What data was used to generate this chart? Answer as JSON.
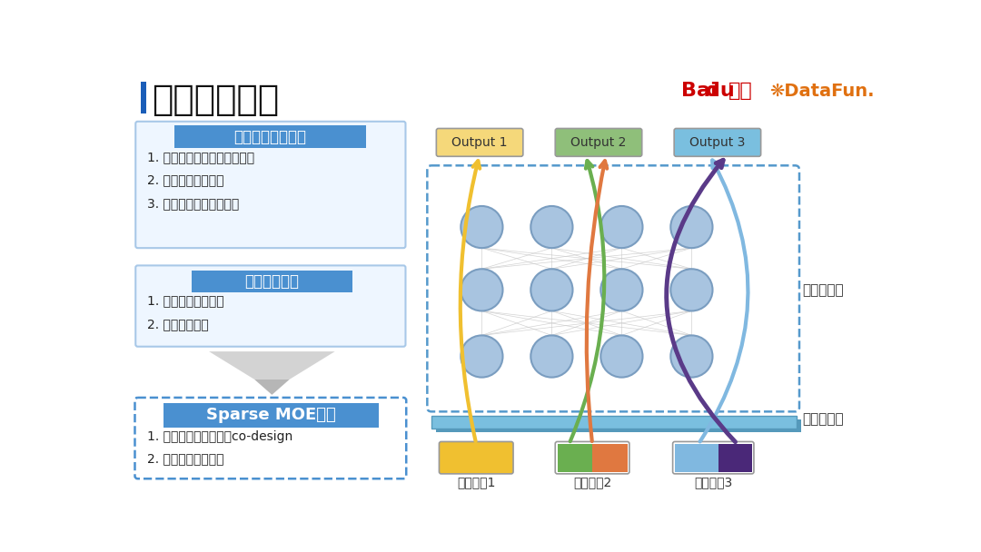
{
  "title": "稀疏路由网络",
  "bg_color": "#ffffff",
  "title_bar_color": "#1A5DB8",
  "box1_title": "规模与算力的矛盾",
  "box1_items": [
    "1. 千亿参数模型，数十种目标",
    "2. 每秒亿级别计算量",
    "3. 数千机器，在线开销大"
  ],
  "box2_title": "传统蒸馏缺陷",
  "box2_items": [
    "1. 流程长，方案复杂",
    "2. 通常精度有损"
  ],
  "box3_title": "Sparse MOE网络",
  "box3_items": [
    "1. 弹性计算，策略架构co-design",
    "2. 最优化算力性价比"
  ],
  "output_labels": [
    "Output 1",
    "Output 2",
    "Output 3"
  ],
  "output_colors": [
    "#F5D87A",
    "#8FBF7A",
    "#7ABFDF"
  ],
  "queue_labels": [
    "召回队列1",
    "召回队列2",
    "召回队列3"
  ],
  "layer_label1": "路由网络层",
  "layer_label2": "流量价值层",
  "node_color": "#A8C4E0",
  "node_edge_color": "#7A9DC0",
  "dashed_box_color": "#5599CC",
  "platform_color": "#7ABFDF",
  "arrow_yellow": "#F0C030",
  "arrow_green": "#6AAF50",
  "arrow_orange": "#E07840",
  "arrow_lightblue": "#80B8E0",
  "arrow_purple": "#5A3A88",
  "box_title_color": "#4A90D0",
  "box_border_color": "#A8C8E8",
  "box_fill_color": "#EEF6FF"
}
